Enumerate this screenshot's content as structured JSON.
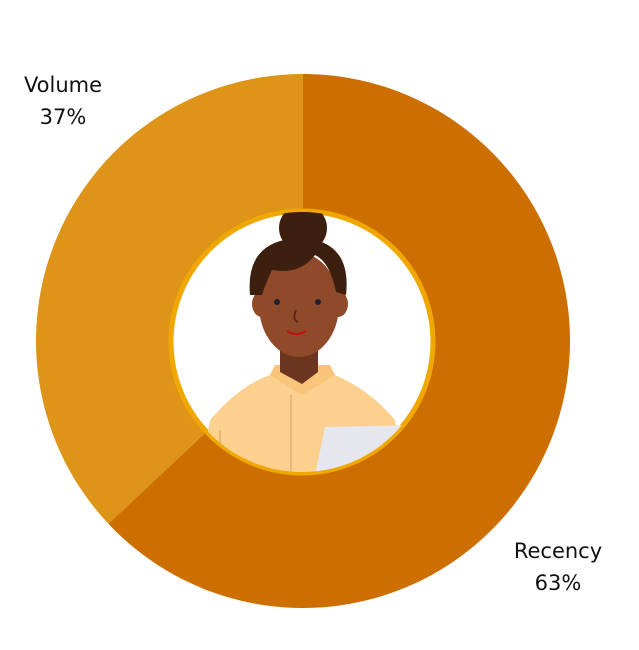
{
  "chart_data": {
    "type": "pie",
    "variant": "donut",
    "categories": [
      "Recency",
      "Volume"
    ],
    "values": [
      63,
      37
    ],
    "value_labels": [
      "63%",
      "37%"
    ],
    "colors": [
      "#CC6F00",
      "#DE9418"
    ],
    "start": "top, clockwise",
    "center_image": "avatar-illustration",
    "center_ring_color": "#F0A800"
  }
}
